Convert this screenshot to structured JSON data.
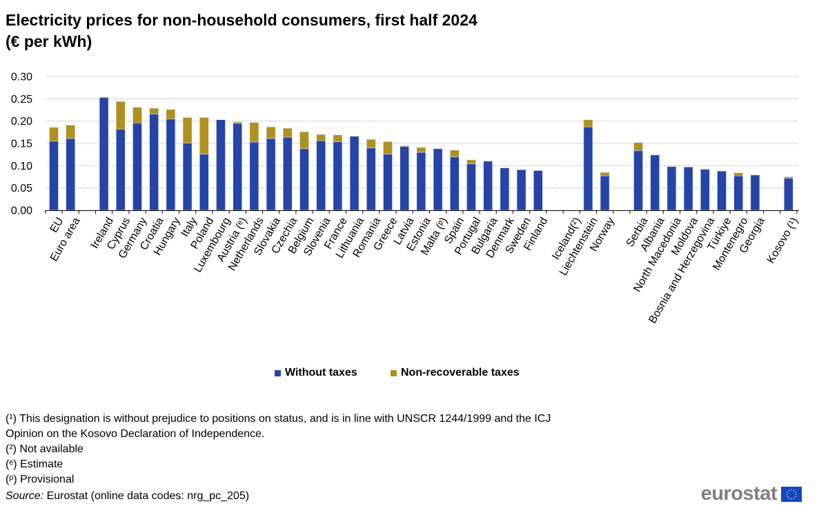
{
  "title_line1": "Electricity prices for non-household consumers, first half 2024",
  "title_line2": "(€ per kWh)",
  "chart_data": {
    "type": "bar",
    "stacked": true,
    "title": "Electricity prices for non-household consumers, first half 2024 (€ per kWh)",
    "xlabel": "",
    "ylabel": "",
    "ylim": [
      0,
      0.3
    ],
    "yticks": [
      "0.00",
      "0.05",
      "0.10",
      "0.15",
      "0.20",
      "0.25",
      "0.30"
    ],
    "grid": true,
    "legend_position": "bottom",
    "categories": [
      "EU",
      "Euro area",
      "",
      "Ireland",
      "Cyprus",
      "Germany",
      "Croatia",
      "Hungary",
      "Italy",
      "Poland",
      "Luxembourg",
      "Austria (ᵉ)",
      "Netherlands",
      "Slovakia",
      "Czechia",
      "Belgium",
      "Slovenia",
      "France",
      "Lithuania",
      "Romania",
      "Greece",
      "Latvia",
      "Estonia",
      "Malta (ᵖ)",
      "Spain",
      "Portugal",
      "Bulgaria",
      "Denmark",
      "Sweden",
      "Finland",
      "",
      "Iceland(²)",
      "Liechtenstein",
      "Norway",
      "",
      "Serbia",
      "Albania",
      "North Macedonia",
      "Moldova",
      "Bosnia and Herzegovina",
      "Türkiye",
      "Montenegro",
      "Georgia",
      "",
      "Kosovo (¹)"
    ],
    "series": [
      {
        "name": "Without taxes",
        "color": "#2644A7",
        "values": [
          0.155,
          0.161,
          null,
          0.253,
          0.182,
          0.196,
          0.216,
          0.205,
          0.151,
          0.126,
          0.203,
          0.195,
          0.153,
          0.161,
          0.164,
          0.138,
          0.156,
          0.154,
          0.166,
          0.14,
          0.126,
          0.143,
          0.13,
          0.138,
          0.12,
          0.104,
          0.11,
          0.095,
          0.091,
          0.089,
          null,
          null,
          0.187,
          0.077,
          null,
          0.134,
          0.124,
          0.098,
          0.097,
          0.092,
          0.088,
          0.077,
          0.079,
          null,
          0.072
        ]
      },
      {
        "name": "Non-recoverable taxes",
        "color": "#B09120",
        "values": [
          0.031,
          0.03,
          null,
          0.0,
          0.062,
          0.035,
          0.013,
          0.021,
          0.057,
          0.082,
          0.0,
          0.003,
          0.044,
          0.026,
          0.02,
          0.038,
          0.014,
          0.015,
          0.0,
          0.019,
          0.028,
          0.002,
          0.011,
          0.0,
          0.015,
          0.009,
          0.0,
          0.0,
          0.0,
          0.0,
          null,
          null,
          0.016,
          0.008,
          null,
          0.018,
          0.0,
          0.0,
          0.0,
          0.0,
          0.0,
          0.007,
          0.0,
          null,
          0.003
        ]
      }
    ]
  },
  "notes": [
    "(¹) This designation is without prejudice to positions on status, and is in line with UNSCR  1244/1999 and the ICJ",
    "Opinion on the Kosovo Declaration of Independence.",
    "(²) Not available",
    "(ᵉ) Estimate",
    "(ᵖ) Provisional"
  ],
  "source_label": "Source:",
  "source_text": " Eurostat (online data codes: nrg_pc_205)",
  "logo_text": "eurostat"
}
